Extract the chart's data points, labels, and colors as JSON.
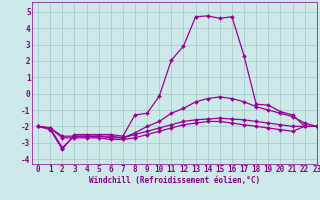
{
  "x": [
    0,
    1,
    2,
    3,
    4,
    5,
    6,
    7,
    8,
    9,
    10,
    11,
    12,
    13,
    14,
    15,
    16,
    17,
    18,
    19,
    20,
    21,
    22,
    23
  ],
  "line1": [
    -2.0,
    -2.2,
    -3.4,
    -2.5,
    -2.5,
    -2.5,
    -2.5,
    -2.6,
    -1.3,
    -1.2,
    -0.15,
    2.05,
    2.9,
    4.7,
    4.75,
    4.6,
    4.7,
    2.3,
    -0.65,
    -0.7,
    -1.1,
    -1.3,
    -2.0,
    -2.0
  ],
  "line2": [
    -2.0,
    -2.1,
    -2.6,
    -2.6,
    -2.6,
    -2.6,
    -2.7,
    -2.7,
    -2.4,
    -2.0,
    -1.7,
    -1.2,
    -0.9,
    -0.5,
    -0.3,
    -0.2,
    -0.3,
    -0.5,
    -0.8,
    -1.0,
    -1.2,
    -1.4,
    -1.8,
    -2.0
  ],
  "line3": [
    -2.0,
    -2.1,
    -2.7,
    -2.7,
    -2.7,
    -2.7,
    -2.8,
    -2.8,
    -2.7,
    -2.5,
    -2.3,
    -2.1,
    -1.9,
    -1.8,
    -1.7,
    -1.7,
    -1.8,
    -1.9,
    -2.0,
    -2.1,
    -2.2,
    -2.3,
    -2.0,
    -2.0
  ],
  "line4": [
    -2.0,
    -2.1,
    -3.3,
    -2.6,
    -2.6,
    -2.6,
    -2.6,
    -2.7,
    -2.5,
    -2.3,
    -2.1,
    -1.9,
    -1.7,
    -1.6,
    -1.55,
    -1.5,
    -1.55,
    -1.6,
    -1.7,
    -1.8,
    -1.9,
    -2.0,
    -2.0,
    -2.0
  ],
  "color": "#990099",
  "bg_color": "#cce8e8",
  "grid_color": "#aacccc",
  "xlim": [
    -0.5,
    23
  ],
  "ylim": [
    -4.3,
    5.6
  ],
  "yticks": [
    -4,
    -3,
    -2,
    -1,
    0,
    1,
    2,
    3,
    4,
    5
  ],
  "xticks": [
    0,
    1,
    2,
    3,
    4,
    5,
    6,
    7,
    8,
    9,
    10,
    11,
    12,
    13,
    14,
    15,
    16,
    17,
    18,
    19,
    20,
    21,
    22,
    23
  ],
  "xlabel": "Windchill (Refroidissement éolien,°C)",
  "marker": "D",
  "markersize": 2,
  "linewidth": 0.9,
  "tick_fontsize": 5.5,
  "xlabel_fontsize": 5.5,
  "font_color": "#880088"
}
